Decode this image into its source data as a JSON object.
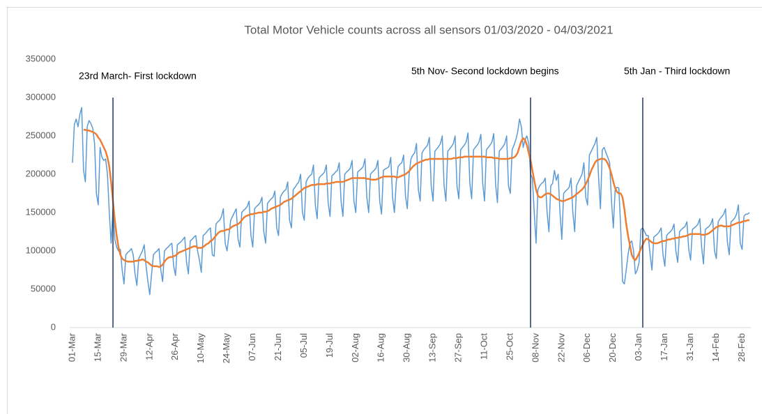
{
  "chart_data": {
    "type": "line",
    "title": "Total Motor Vehicle counts across all sensors 01/03/2020 - 04/03/2021",
    "categories": [
      "01-Mar",
      null,
      null,
      null,
      null,
      null,
      null,
      null,
      null,
      null,
      null,
      null,
      null,
      null,
      "15-Mar",
      null,
      null,
      null,
      null,
      null,
      null,
      null,
      null,
      null,
      null,
      null,
      null,
      null,
      "29-Mar",
      null,
      null,
      null,
      null,
      null,
      null,
      null,
      null,
      null,
      null,
      null,
      null,
      null,
      "12-Apr",
      null,
      null,
      null,
      null,
      null,
      null,
      null,
      null,
      null,
      null,
      null,
      null,
      null,
      "26-Apr",
      null,
      null,
      null,
      null,
      null,
      null,
      null,
      null,
      null,
      null,
      null,
      null,
      null,
      "10-May",
      null,
      null,
      null,
      null,
      null,
      null,
      null,
      null,
      null,
      null,
      null,
      null,
      null,
      "24-May",
      null,
      null,
      null,
      null,
      null,
      null,
      null,
      null,
      null,
      null,
      null,
      null,
      null,
      "07-Jun",
      null,
      null,
      null,
      null,
      null,
      null,
      null,
      null,
      null,
      null,
      null,
      null,
      null,
      "21-Jun",
      null,
      null,
      null,
      null,
      null,
      null,
      null,
      null,
      null,
      null,
      null,
      null,
      null,
      "05-Jul",
      null,
      null,
      null,
      null,
      null,
      null,
      null,
      null,
      null,
      null,
      null,
      null,
      null,
      "19-Jul",
      null,
      null,
      null,
      null,
      null,
      null,
      null,
      null,
      null,
      null,
      null,
      null,
      null,
      "02-Aug",
      null,
      null,
      null,
      null,
      null,
      null,
      null,
      null,
      null,
      null,
      null,
      null,
      null,
      "16-Aug",
      null,
      null,
      null,
      null,
      null,
      null,
      null,
      null,
      null,
      null,
      null,
      null,
      null,
      "30-Aug",
      null,
      null,
      null,
      null,
      null,
      null,
      null,
      null,
      null,
      null,
      null,
      null,
      null,
      "13-Sep",
      null,
      null,
      null,
      null,
      null,
      null,
      null,
      null,
      null,
      null,
      null,
      null,
      null,
      "27-Sep",
      null,
      null,
      null,
      null,
      null,
      null,
      null,
      null,
      null,
      null,
      null,
      null,
      null,
      "11-Oct",
      null,
      null,
      null,
      null,
      null,
      null,
      null,
      null,
      null,
      null,
      null,
      null,
      null,
      "25-Oct",
      null,
      null,
      null,
      null,
      null,
      null,
      null,
      null,
      null,
      null,
      null,
      null,
      null,
      "08-Nov",
      null,
      null,
      null,
      null,
      null,
      null,
      null,
      null,
      null,
      null,
      null,
      null,
      null,
      "22-Nov",
      null,
      null,
      null,
      null,
      null,
      null,
      null,
      null,
      null,
      null,
      null,
      null,
      null,
      "06-Dec",
      null,
      null,
      null,
      null,
      null,
      null,
      null,
      null,
      null,
      null,
      null,
      null,
      null,
      "20-Dec",
      null,
      null,
      null,
      null,
      null,
      null,
      null,
      null,
      null,
      null,
      null,
      null,
      null,
      "03-Jan",
      null,
      null,
      null,
      null,
      null,
      null,
      null,
      null,
      null,
      null,
      null,
      null,
      null,
      "17-Jan",
      null,
      null,
      null,
      null,
      null,
      null,
      null,
      null,
      null,
      null,
      null,
      null,
      null,
      "31-Jan",
      null,
      null,
      null,
      null,
      null,
      null,
      null,
      null,
      null,
      null,
      null,
      null,
      null,
      "14-Feb",
      null,
      null,
      null,
      null,
      null,
      null,
      null,
      null,
      null,
      null,
      null,
      null,
      null,
      "28-Feb",
      null,
      null,
      null,
      null
    ],
    "series": [
      {
        "color": "#5b9bd5",
        "values": [
          215000,
          265000,
          272000,
          262000,
          278000,
          287000,
          205000,
          190000,
          262000,
          270000,
          266000,
          260000,
          240000,
          175000,
          160000,
          235000,
          222000,
          218000,
          220000,
          200000,
          150000,
          110000,
          155000,
          115000,
          105000,
          100000,
          102000,
          75000,
          57000,
          95000,
          98000,
          100000,
          103000,
          95000,
          70000,
          55000,
          90000,
          95000,
          100000,
          108000,
          80000,
          60000,
          43000,
          70000,
          95000,
          98000,
          100000,
          103000,
          75000,
          60000,
          100000,
          103000,
          105000,
          108000,
          110000,
          80000,
          68000,
          108000,
          110000,
          112000,
          115000,
          118000,
          85000,
          70000,
          113000,
          115000,
          118000,
          120000,
          100000,
          88000,
          72000,
          120000,
          122000,
          125000,
          128000,
          130000,
          95000,
          93000,
          135000,
          138000,
          140000,
          145000,
          155000,
          110000,
          100000,
          120000,
          140000,
          145000,
          150000,
          155000,
          115000,
          105000,
          150000,
          153000,
          155000,
          158000,
          165000,
          120000,
          105000,
          155000,
          158000,
          160000,
          163000,
          170000,
          125000,
          110000,
          162000,
          165000,
          168000,
          170000,
          178000,
          130000,
          120000,
          170000,
          175000,
          178000,
          180000,
          190000,
          140000,
          130000,
          180000,
          183000,
          187000,
          190000,
          200000,
          150000,
          140000,
          190000,
          195000,
          198000,
          200000,
          212000,
          160000,
          142000,
          195000,
          198000,
          200000,
          203000,
          212000,
          162000,
          145000,
          198000,
          200000,
          203000,
          205000,
          215000,
          165000,
          145000,
          200000,
          203000,
          205000,
          208000,
          218000,
          165000,
          150000,
          203000,
          205000,
          207000,
          210000,
          220000,
          170000,
          150000,
          200000,
          203000,
          205000,
          208000,
          218000,
          165000,
          148000,
          205000,
          207000,
          208000,
          210000,
          222000,
          170000,
          150000,
          190000,
          210000,
          213000,
          215000,
          225000,
          172000,
          155000,
          200000,
          220000,
          225000,
          228000,
          240000,
          180000,
          165000,
          228000,
          232000,
          235000,
          238000,
          248000,
          185000,
          165000,
          230000,
          233000,
          236000,
          240000,
          250000,
          185000,
          165000,
          230000,
          233000,
          236000,
          240000,
          250000,
          185000,
          168000,
          232000,
          235000,
          238000,
          242000,
          254000,
          188000,
          168000,
          232000,
          235000,
          238000,
          242000,
          252000,
          188000,
          165000,
          232000,
          235000,
          238000,
          242000,
          253000,
          187000,
          163000,
          230000,
          233000,
          236000,
          240000,
          250000,
          185000,
          175000,
          232000,
          238000,
          245000,
          255000,
          272000,
          262000,
          235000,
          245000,
          250000,
          240000,
          200000,
          195000,
          150000,
          110000,
          180000,
          185000,
          188000,
          190000,
          195000,
          150000,
          125000,
          185000,
          188000,
          205000,
          192000,
          200000,
          150000,
          115000,
          175000,
          178000,
          180000,
          183000,
          195000,
          150000,
          125000,
          185000,
          190000,
          195000,
          200000,
          215000,
          170000,
          160000,
          225000,
          230000,
          235000,
          240000,
          248000,
          195000,
          155000,
          232000,
          235000,
          228000,
          222000,
          215000,
          165000,
          130000,
          180000,
          183000,
          182000,
          130000,
          60000,
          57000,
          75000,
          95000,
          110000,
          113000,
          100000,
          70000,
          75000,
          85000,
          128000,
          130000,
          125000,
          120000,
          120000,
          95000,
          75000,
          118000,
          120000,
          122000,
          125000,
          130000,
          95000,
          80000,
          120000,
          123000,
          125000,
          128000,
          135000,
          100000,
          85000,
          125000,
          128000,
          130000,
          132000,
          138000,
          102000,
          88000,
          128000,
          130000,
          132000,
          135000,
          142000,
          105000,
          83000,
          128000,
          130000,
          132000,
          135000,
          142000,
          100000,
          90000,
          138000,
          142000,
          145000,
          148000,
          155000,
          112000,
          95000,
          138000,
          140000,
          143000,
          148000,
          160000,
          110000,
          102000,
          145000,
          148000,
          148000,
          150000
        ]
      },
      {
        "color": "#ed7d31",
        "values": [
          null,
          null,
          null,
          null,
          null,
          null,
          258000,
          258000,
          257000,
          257000,
          256000,
          255000,
          254000,
          252000,
          248000,
          245000,
          240000,
          235000,
          230000,
          222000,
          210000,
          190000,
          165000,
          140000,
          120000,
          105000,
          95000,
          90000,
          88000,
          87000,
          86000,
          86000,
          86000,
          86000,
          87000,
          87000,
          88000,
          88000,
          89000,
          88000,
          86000,
          85000,
          83000,
          81000,
          80000,
          80000,
          80000,
          79000,
          80000,
          82000,
          86000,
          89000,
          91000,
          92000,
          92000,
          93000,
          94000,
          96000,
          98000,
          99000,
          100000,
          101000,
          102000,
          103000,
          104000,
          105000,
          106000,
          106000,
          104000,
          104000,
          104000,
          105000,
          107000,
          109000,
          110000,
          113000,
          114000,
          117000,
          120000,
          123000,
          125000,
          126000,
          126000,
          127000,
          128000,
          128000,
          130000,
          132000,
          133000,
          134000,
          135000,
          137000,
          140000,
          143000,
          145000,
          146000,
          147000,
          148000,
          148000,
          149000,
          149000,
          150000,
          150000,
          150000,
          151000,
          151000,
          152000,
          153000,
          155000,
          156000,
          157000,
          158000,
          159000,
          160000,
          162000,
          164000,
          165000,
          166000,
          167000,
          168000,
          170000,
          172000,
          174000,
          176000,
          178000,
          180000,
          182000,
          183000,
          184000,
          185000,
          186000,
          186000,
          186000,
          187000,
          187000,
          187000,
          187000,
          187000,
          188000,
          188000,
          188000,
          189000,
          189000,
          190000,
          190000,
          190000,
          190000,
          190000,
          191000,
          192000,
          193000,
          194000,
          195000,
          195000,
          195000,
          195000,
          195000,
          195000,
          195000,
          195000,
          194000,
          194000,
          193000,
          193000,
          193000,
          193000,
          194000,
          195000,
          196000,
          197000,
          197000,
          197000,
          197000,
          197000,
          197000,
          197000,
          196000,
          196000,
          197000,
          198000,
          199000,
          200000,
          202000,
          204000,
          207000,
          210000,
          212000,
          214000,
          215000,
          216000,
          217000,
          218000,
          219000,
          219000,
          220000,
          220000,
          220000,
          220000,
          220000,
          220000,
          220000,
          220000,
          220000,
          220000,
          220000,
          220000,
          220000,
          221000,
          221000,
          221000,
          222000,
          222000,
          222000,
          223000,
          223000,
          223000,
          223000,
          223000,
          223000,
          223000,
          223000,
          223000,
          223000,
          223000,
          223000,
          222000,
          222000,
          222000,
          222000,
          221000,
          221000,
          221000,
          220000,
          220000,
          220000,
          220000,
          220000,
          220000,
          221000,
          221000,
          222000,
          224000,
          228000,
          236000,
          243000,
          247000,
          245000,
          238000,
          228000,
          218000,
          205000,
          192000,
          180000,
          172000,
          170000,
          170000,
          172000,
          174000,
          175000,
          175000,
          174000,
          172000,
          170000,
          168000,
          167000,
          166000,
          165000,
          165000,
          166000,
          167000,
          168000,
          169000,
          170000,
          172000,
          174000,
          176000,
          178000,
          180000,
          183000,
          187000,
          192000,
          198000,
          205000,
          210000,
          215000,
          218000,
          219000,
          220000,
          220000,
          220000,
          218000,
          214000,
          208000,
          200000,
          190000,
          182000,
          177000,
          175000,
          175000,
          170000,
          155000,
          135000,
          120000,
          108000,
          95000,
          90000,
          88000,
          92000,
          97000,
          103000,
          108000,
          113000,
          116000,
          115000,
          113000,
          111000,
          110000,
          110000,
          110000,
          111000,
          112000,
          113000,
          113000,
          114000,
          115000,
          115000,
          116000,
          116000,
          117000,
          117000,
          118000,
          118000,
          119000,
          119000,
          120000,
          121000,
          122000,
          122000,
          122000,
          122000,
          122000,
          122000,
          121000,
          121000,
          121000,
          122000,
          123000,
          125000,
          127000,
          129000,
          131000,
          132000,
          133000,
          133000,
          132000,
          132000,
          132000,
          132000,
          133000,
          134000,
          135000,
          136000,
          137000,
          137000,
          138000,
          139000,
          139000,
          140000,
          140000
        ]
      }
    ],
    "ylim": [
      0,
      350000
    ],
    "yticks": [
      0,
      50000,
      100000,
      150000,
      200000,
      250000,
      300000,
      350000
    ],
    "grid": false,
    "annotations": [
      {
        "text": "23rd March- First lockdown",
        "x": 22
      },
      {
        "text": "5th Nov- Second lockdown begins",
        "x": 249
      },
      {
        "text": "5th Jan - Third lockdown",
        "x": 310
      }
    ]
  }
}
